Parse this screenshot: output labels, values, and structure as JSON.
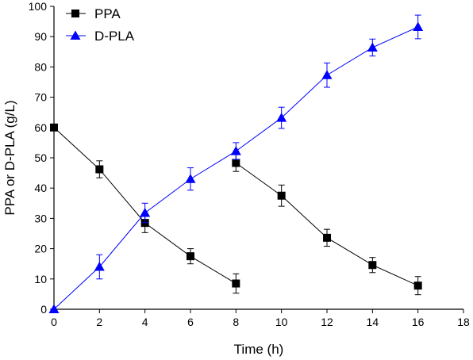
{
  "chart_data": {
    "type": "line",
    "xlabel": "Time (h)",
    "ylabel": "PPA or D-PLA (g/L)",
    "xlim": [
      0,
      18
    ],
    "ylim": [
      0,
      100
    ],
    "xticks": [
      0,
      2,
      4,
      6,
      8,
      10,
      12,
      14,
      16,
      18
    ],
    "yticks": [
      0,
      10,
      20,
      30,
      40,
      50,
      60,
      70,
      80,
      90,
      100
    ],
    "grid": false,
    "legend_position": "top-left",
    "series": [
      {
        "name": "PPA",
        "color": "#000000",
        "marker": "square",
        "segments": [
          [
            {
              "x": 0,
              "y": 60.0,
              "err": 0.0
            },
            {
              "x": 2,
              "y": 46.2,
              "err": 2.8
            },
            {
              "x": 4,
              "y": 28.5,
              "err": 3.2
            },
            {
              "x": 6,
              "y": 17.5,
              "err": 2.5
            },
            {
              "x": 8,
              "y": 8.5,
              "err": 3.2
            }
          ],
          [
            {
              "x": 8,
              "y": 48.3,
              "err": 2.8
            },
            {
              "x": 10,
              "y": 37.5,
              "err": 3.5
            },
            {
              "x": 12,
              "y": 23.6,
              "err": 2.8
            },
            {
              "x": 14,
              "y": 14.6,
              "err": 2.5
            },
            {
              "x": 16,
              "y": 7.8,
              "err": 3.0
            }
          ]
        ]
      },
      {
        "name": "D-PLA",
        "color": "#0000ff",
        "marker": "triangle",
        "segments": [
          [
            {
              "x": 0,
              "y": 0.0,
              "err": 0.0
            },
            {
              "x": 2,
              "y": 14.0,
              "err": 4.0
            },
            {
              "x": 4,
              "y": 31.8,
              "err": 3.2
            },
            {
              "x": 6,
              "y": 43.0,
              "err": 3.7
            },
            {
              "x": 8,
              "y": 52.2,
              "err": 2.8
            },
            {
              "x": 10,
              "y": 63.2,
              "err": 3.5
            },
            {
              "x": 12,
              "y": 77.3,
              "err": 4.0
            },
            {
              "x": 14,
              "y": 86.4,
              "err": 2.8
            },
            {
              "x": 16,
              "y": 93.2,
              "err": 3.9
            }
          ]
        ]
      }
    ]
  }
}
